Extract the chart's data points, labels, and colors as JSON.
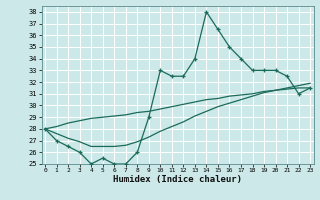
{
  "xlabel": "Humidex (Indice chaleur)",
  "bg_color": "#cce8e8",
  "grid_color": "#ffffff",
  "line_color": "#1a6b5a",
  "x_data": [
    0,
    1,
    2,
    3,
    4,
    5,
    6,
    7,
    8,
    9,
    10,
    11,
    12,
    13,
    14,
    15,
    16,
    17,
    18,
    19,
    20,
    21,
    22,
    23
  ],
  "y_main": [
    28,
    27,
    26.5,
    26,
    25,
    25.5,
    25,
    25,
    26,
    29,
    33,
    32.5,
    32.5,
    34,
    38,
    36.5,
    35,
    34,
    33,
    33,
    33,
    32.5,
    31,
    31.5
  ],
  "y_line1": [
    28.0,
    27.6,
    27.2,
    26.9,
    26.5,
    26.5,
    26.5,
    26.6,
    26.9,
    27.3,
    27.8,
    28.2,
    28.6,
    29.1,
    29.5,
    29.9,
    30.2,
    30.5,
    30.8,
    31.1,
    31.3,
    31.5,
    31.7,
    31.9
  ],
  "y_line2": [
    28.0,
    28.2,
    28.5,
    28.7,
    28.9,
    29.0,
    29.1,
    29.2,
    29.4,
    29.5,
    29.7,
    29.9,
    30.1,
    30.3,
    30.5,
    30.6,
    30.8,
    30.9,
    31.0,
    31.2,
    31.3,
    31.4,
    31.5,
    31.5
  ],
  "xlim": [
    0,
    23
  ],
  "ylim": [
    25,
    38
  ],
  "yticks": [
    25,
    26,
    27,
    28,
    29,
    30,
    31,
    32,
    33,
    34,
    35,
    36,
    37,
    38
  ],
  "xticks": [
    0,
    1,
    2,
    3,
    4,
    5,
    6,
    7,
    8,
    9,
    10,
    11,
    12,
    13,
    14,
    15,
    16,
    17,
    18,
    19,
    20,
    21,
    22,
    23
  ]
}
